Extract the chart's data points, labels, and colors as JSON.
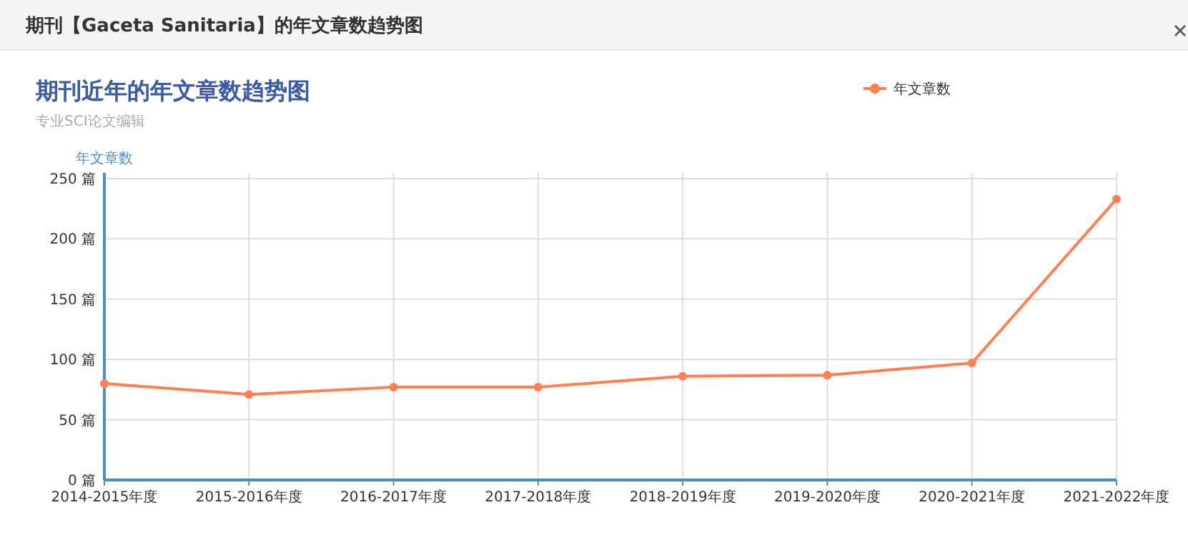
{
  "chart_data": {
    "type": "line",
    "title": "期刊近年的年文章数趋势图",
    "subtitle": "专业SCI论文编辑",
    "annotations": [
      "期刊【Gaceta Sanitaria】的年文章数趋势图"
    ],
    "ylabel": "年文章数",
    "categories": [
      "2014-2015年度",
      "2015-2016年度",
      "2016-2017年度",
      "2017-2018年度",
      "2018-2019年度",
      "2019-2020年度",
      "2020-2021年度",
      "2021-2022年度"
    ],
    "series": [
      {
        "name": "年文章数",
        "color": "#ff7f50",
        "values": [
          80,
          71,
          77,
          77,
          86,
          87,
          97,
          233
        ]
      }
    ],
    "ylim": [
      0,
      250
    ],
    "yticks": [
      {
        "value": 0,
        "label": "0 篇"
      },
      {
        "value": 50,
        "label": "50 篇"
      },
      {
        "value": 100,
        "label": "100 篇"
      },
      {
        "value": 150,
        "label": "150 篇"
      },
      {
        "value": 200,
        "label": "200 篇"
      },
      {
        "value": 250,
        "label": "250 篇"
      }
    ],
    "grid": true,
    "legend": "top right",
    "marker": "circle",
    "line_style": "solid"
  }
}
